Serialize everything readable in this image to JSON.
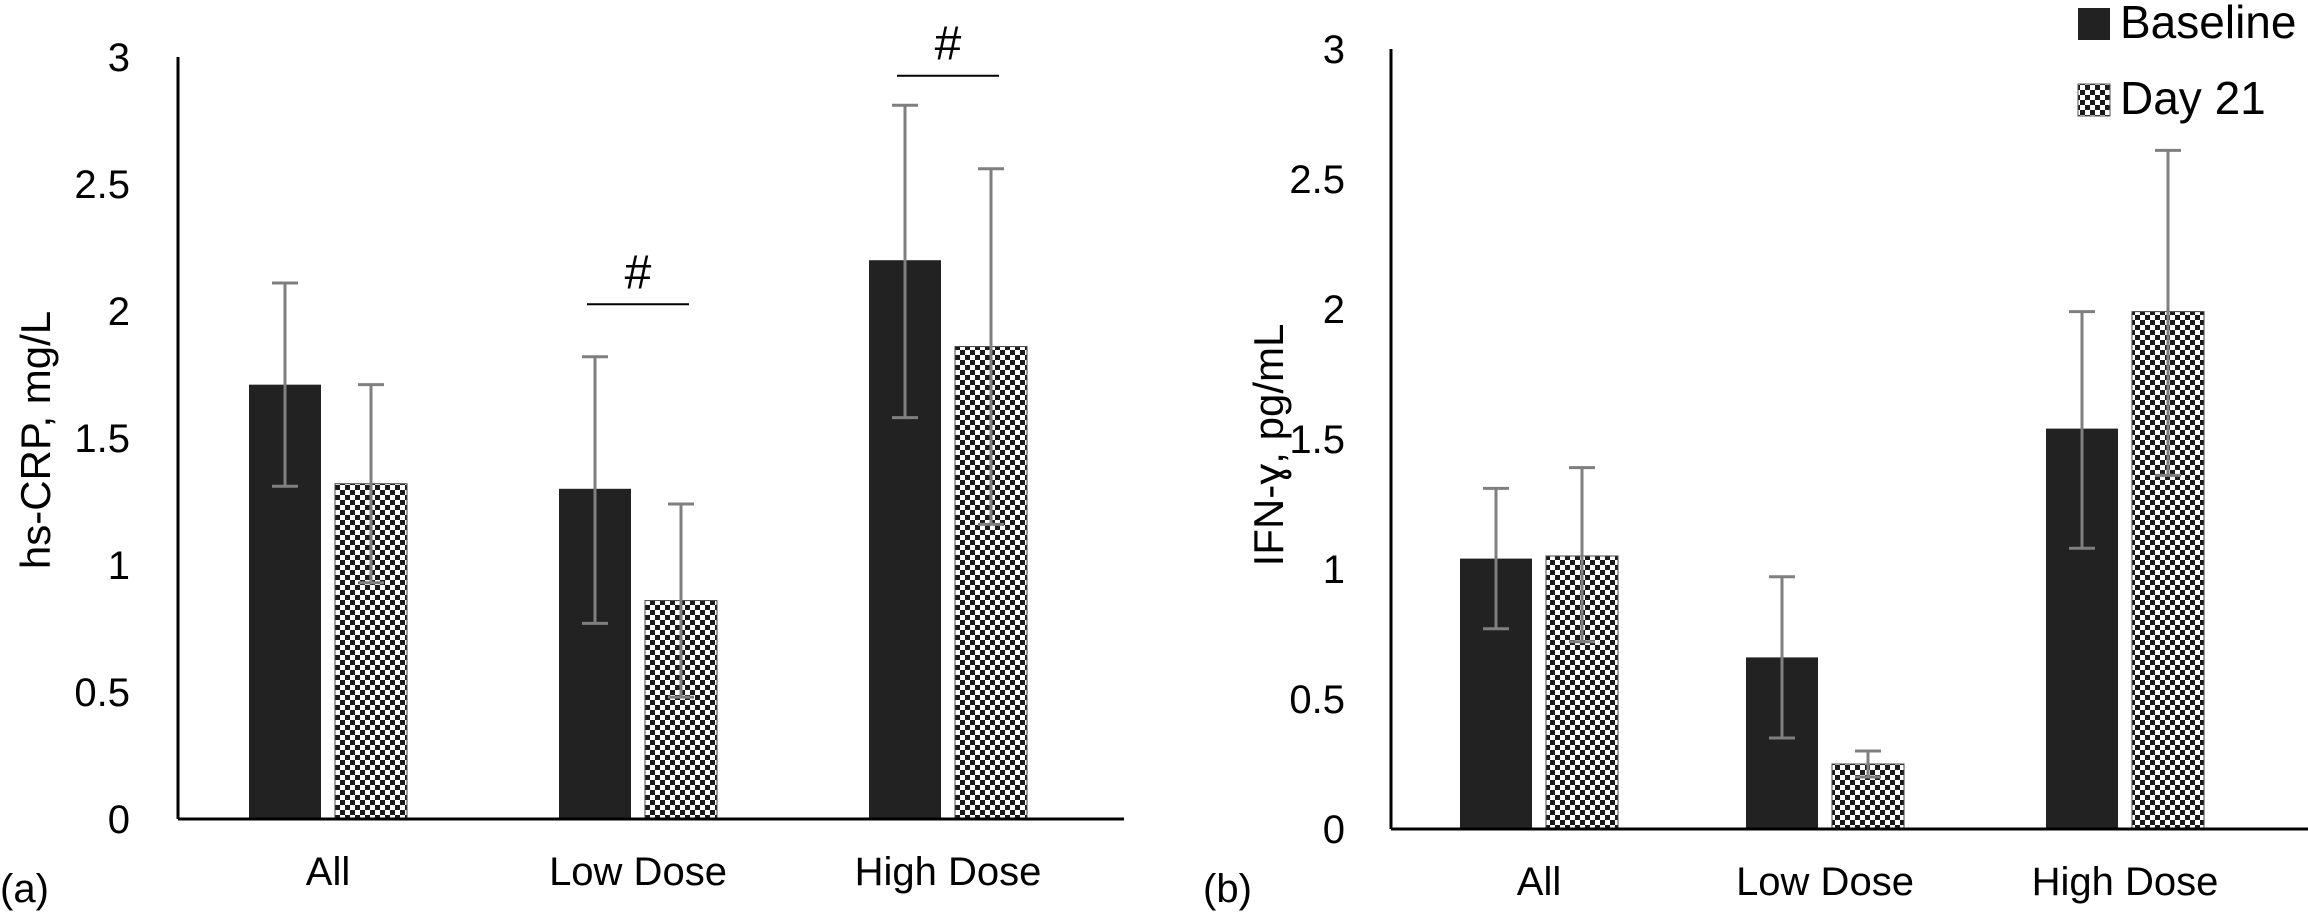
{
  "legend": [
    {
      "label": "Baseline",
      "pattern": "solid"
    },
    {
      "label": "Day 21",
      "pattern": "checker"
    }
  ],
  "colors": {
    "baseline_fill": "#222222",
    "checker_dark": "#1a1a1a",
    "checker_light": "#ffffff",
    "error_bar": "#7f7f7f",
    "axis": "#000000"
  },
  "chart_data": [
    {
      "type": "bar",
      "panel_label": "(a)",
      "ylabel": "hs-CRP, mg/L",
      "xlabel": "",
      "ylim": [
        0,
        3
      ],
      "yticks": [
        "0",
        "0.5",
        "1",
        "1.5",
        "2",
        "2.5",
        "3"
      ],
      "categories": [
        "All",
        "Low Dose",
        "High Dose"
      ],
      "series": [
        {
          "name": "Baseline",
          "values": [
            1.71,
            1.3,
            2.2
          ],
          "error_low": [
            1.31,
            0.77,
            1.58
          ],
          "error_high": [
            2.11,
            1.82,
            2.81
          ]
        },
        {
          "name": "Day 21",
          "values": [
            1.32,
            0.86,
            1.86
          ],
          "error_low": [
            0.93,
            0.48,
            1.16
          ],
          "error_high": [
            1.71,
            1.24,
            2.56
          ]
        }
      ],
      "annotations": [
        {
          "text": "#",
          "category": "Low Dose",
          "y": 2.05
        },
        {
          "text": "#",
          "category": "High Dose",
          "y": 2.95
        }
      ],
      "grid": false
    },
    {
      "type": "bar",
      "panel_label": "(b)",
      "ylabel": "IFN-ɣ, pg/mL",
      "xlabel": "",
      "ylim": [
        0,
        3
      ],
      "yticks": [
        "0",
        "0.5",
        "1",
        "1.5",
        "2",
        "2.5",
        "3"
      ],
      "categories": [
        "All",
        "Low Dose",
        "High Dose"
      ],
      "series": [
        {
          "name": "Baseline",
          "values": [
            1.04,
            0.66,
            1.54
          ],
          "error_low": [
            0.77,
            0.35,
            1.08
          ],
          "error_high": [
            1.31,
            0.97,
            1.99
          ]
        },
        {
          "name": "Day 21",
          "values": [
            1.05,
            0.25,
            1.99
          ],
          "error_low": [
            0.72,
            0.2,
            1.36
          ],
          "error_high": [
            1.39,
            0.3,
            2.61
          ]
        }
      ],
      "annotations": [],
      "grid": false
    }
  ]
}
